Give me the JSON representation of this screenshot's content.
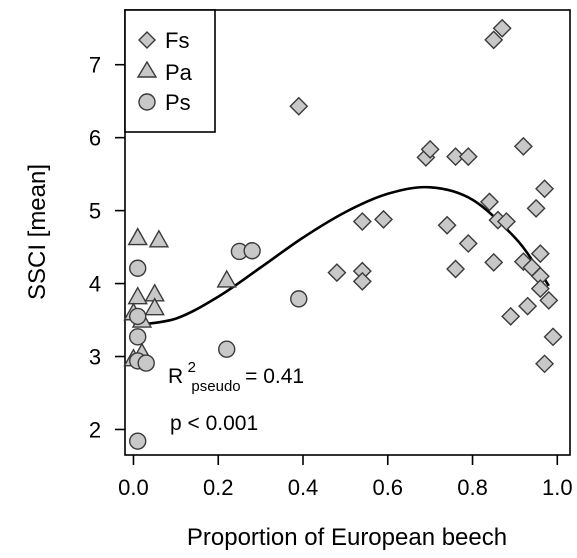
{
  "chart_data": {
    "type": "scatter",
    "xlabel": "Proportion of European beech",
    "ylabel": "SSCI [mean]",
    "xlim": [
      -0.02,
      1.03
    ],
    "ylim": [
      1.65,
      7.75
    ],
    "xticks": [
      "0.0",
      "0.2",
      "0.4",
      "0.6",
      "0.8",
      "1.0"
    ],
    "xtick_values": [
      0,
      0.2,
      0.4,
      0.6,
      0.8,
      1.0
    ],
    "yticks": [
      "2",
      "3",
      "4",
      "5",
      "6",
      "7"
    ],
    "ytick_values": [
      2,
      3,
      4,
      5,
      6,
      7
    ],
    "grid": false,
    "legend_position": "top-left",
    "marker_fill": "#c8c8c8",
    "marker_stroke": "#3a3a3a",
    "fit_curve_color": "#000000",
    "series": [
      {
        "name": "Fs",
        "marker": "diamond",
        "points": [
          [
            0.39,
            6.43
          ],
          [
            0.48,
            4.15
          ],
          [
            0.54,
            4.85
          ],
          [
            0.54,
            4.17
          ],
          [
            0.54,
            4.03
          ],
          [
            0.59,
            4.88
          ],
          [
            0.69,
            5.73
          ],
          [
            0.7,
            5.84
          ],
          [
            0.74,
            4.8
          ],
          [
            0.76,
            5.74
          ],
          [
            0.76,
            4.2
          ],
          [
            0.79,
            5.74
          ],
          [
            0.79,
            4.55
          ],
          [
            0.84,
            5.12
          ],
          [
            0.85,
            4.29
          ],
          [
            0.85,
            7.34
          ],
          [
            0.86,
            4.87
          ],
          [
            0.87,
            7.5
          ],
          [
            0.88,
            4.85
          ],
          [
            0.89,
            3.55
          ],
          [
            0.92,
            5.88
          ],
          [
            0.92,
            4.3
          ],
          [
            0.93,
            3.69
          ],
          [
            0.94,
            4.22
          ],
          [
            0.95,
            5.03
          ],
          [
            0.96,
            4.41
          ],
          [
            0.96,
            4.1
          ],
          [
            0.96,
            3.93
          ],
          [
            0.97,
            5.3
          ],
          [
            0.97,
            2.9
          ],
          [
            0.98,
            3.77
          ],
          [
            0.99,
            3.27
          ]
        ]
      },
      {
        "name": "Pa",
        "marker": "triangle",
        "points": [
          [
            0.01,
            4.63
          ],
          [
            0.06,
            4.6
          ],
          [
            0.22,
            4.05
          ],
          [
            0.01,
            3.82
          ],
          [
            0.05,
            3.86
          ],
          [
            0.0,
            3.6
          ],
          [
            0.05,
            3.67
          ],
          [
            0.02,
            3.5
          ],
          [
            0.0,
            2.97
          ],
          [
            0.02,
            3.05
          ]
        ]
      },
      {
        "name": "Ps",
        "marker": "circle",
        "points": [
          [
            0.01,
            4.21
          ],
          [
            0.25,
            4.44
          ],
          [
            0.28,
            4.45
          ],
          [
            0.39,
            3.79
          ],
          [
            0.01,
            3.55
          ],
          [
            0.01,
            3.27
          ],
          [
            0.22,
            3.1
          ],
          [
            0.01,
            2.94
          ],
          [
            0.03,
            2.91
          ],
          [
            0.01,
            1.84
          ]
        ]
      }
    ],
    "fit_curve": {
      "description": "cubic fit",
      "x": [
        0.0,
        0.1,
        0.2,
        0.3,
        0.4,
        0.5,
        0.6,
        0.7,
        0.8,
        0.9,
        0.95,
        0.98
      ],
      "y": [
        3.43,
        3.52,
        3.82,
        4.22,
        4.63,
        4.98,
        5.23,
        5.32,
        5.15,
        4.63,
        4.24,
        3.97
      ]
    },
    "annotations": {
      "r2_base": "R",
      "r2_sup": "2",
      "r2_sub": "pseudo",
      "r2_value": " = 0.41",
      "p_text": "p < 0.001"
    }
  }
}
